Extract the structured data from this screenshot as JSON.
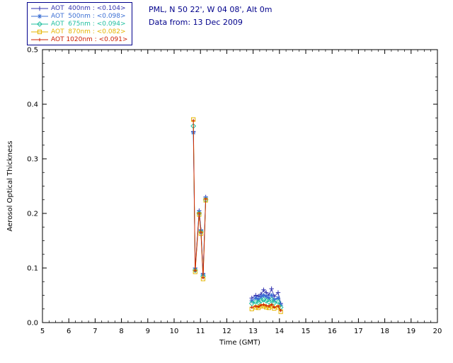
{
  "header": {
    "site": "PML, N 50 22', W 04 08', Alt 0m",
    "date_line": "Data from: 13 Dec 2009",
    "color": "#00008b"
  },
  "axes": {
    "xlabel": "Time (GMT)",
    "ylabel": "Aerosol Optical Thickness",
    "xlim": [
      5,
      20
    ],
    "ylim": [
      0,
      0.5
    ],
    "xticks": [
      5,
      6,
      7,
      8,
      9,
      10,
      11,
      12,
      13,
      14,
      15,
      16,
      17,
      18,
      19,
      20
    ],
    "yticks": [
      0.0,
      0.1,
      0.2,
      0.3,
      0.4,
      0.5
    ],
    "x_minor_step": 0.25,
    "y_minor_step": 0.025,
    "frame_color": "#000000",
    "tick_label_color": "#000000"
  },
  "chart_data": {
    "type": "line",
    "title": "",
    "xlabel": "Time (GMT)",
    "ylabel": "Aerosol Optical Thickness",
    "xlim": [
      5,
      20
    ],
    "ylim": [
      0,
      0.5
    ],
    "legend_position": "top-left",
    "gap_break": 0.8,
    "series": [
      {
        "name": "AOT  400nm",
        "mean_label": "<0.104>",
        "color": "#3333b0",
        "marker": "plus",
        "x": [
          10.73,
          10.8,
          10.95,
          11.02,
          11.1,
          11.2,
          12.95,
          13.1,
          13.2,
          13.3,
          13.4,
          13.5,
          13.6,
          13.7,
          13.8,
          13.95,
          14.05
        ],
        "y": [
          0.35,
          0.1,
          0.205,
          0.17,
          0.09,
          0.23,
          0.045,
          0.05,
          0.048,
          0.052,
          0.06,
          0.055,
          0.05,
          0.062,
          0.048,
          0.055,
          0.035
        ]
      },
      {
        "name": "AOT  500nm",
        "mean_label": "<0.098>",
        "color": "#3b6fd4",
        "marker": "asterisk",
        "x": [
          10.73,
          10.8,
          10.95,
          11.02,
          11.1,
          11.2,
          12.95,
          13.1,
          13.2,
          13.3,
          13.4,
          13.5,
          13.6,
          13.7,
          13.8,
          13.95,
          14.05
        ],
        "y": [
          0.348,
          0.097,
          0.202,
          0.168,
          0.088,
          0.228,
          0.04,
          0.045,
          0.043,
          0.047,
          0.05,
          0.048,
          0.045,
          0.05,
          0.042,
          0.045,
          0.032
        ]
      },
      {
        "name": "AOT  675nm",
        "mean_label": "<0.094>",
        "color": "#1fbf9f",
        "marker": "diamond",
        "x": [
          10.73,
          10.8,
          10.95,
          11.02,
          11.1,
          11.2,
          12.95,
          13.1,
          13.2,
          13.3,
          13.4,
          13.5,
          13.6,
          13.7,
          13.8,
          13.95,
          14.05
        ],
        "y": [
          0.36,
          0.096,
          0.2,
          0.166,
          0.085,
          0.225,
          0.035,
          0.038,
          0.037,
          0.04,
          0.042,
          0.04,
          0.038,
          0.042,
          0.036,
          0.038,
          0.028
        ]
      },
      {
        "name": "AOT  870nm",
        "mean_label": "<0.082>",
        "color": "#e5b400",
        "marker": "square",
        "x": [
          10.73,
          10.8,
          10.95,
          11.02,
          11.1,
          11.2,
          12.95,
          13.1,
          13.2,
          13.3,
          13.4,
          13.5,
          13.6,
          13.7,
          13.8,
          13.95,
          14.05
        ],
        "y": [
          0.372,
          0.093,
          0.198,
          0.163,
          0.08,
          0.224,
          0.025,
          0.028,
          0.027,
          0.03,
          0.03,
          0.028,
          0.027,
          0.03,
          0.026,
          0.028,
          0.02
        ]
      },
      {
        "name": "AOT 1020nm",
        "mean_label": "<0.091>",
        "color": "#cf1d00",
        "marker": "small-plus",
        "x": [
          10.73,
          10.8,
          10.95,
          11.02,
          11.1,
          11.2,
          12.95,
          13.1,
          13.2,
          13.3,
          13.4,
          13.5,
          13.6,
          13.7,
          13.8,
          13.95,
          14.05
        ],
        "y": [
          0.37,
          0.095,
          0.2,
          0.165,
          0.082,
          0.226,
          0.028,
          0.03,
          0.029,
          0.032,
          0.033,
          0.031,
          0.03,
          0.033,
          0.028,
          0.03,
          0.022
        ]
      }
    ],
    "legend_separator": " : "
  }
}
